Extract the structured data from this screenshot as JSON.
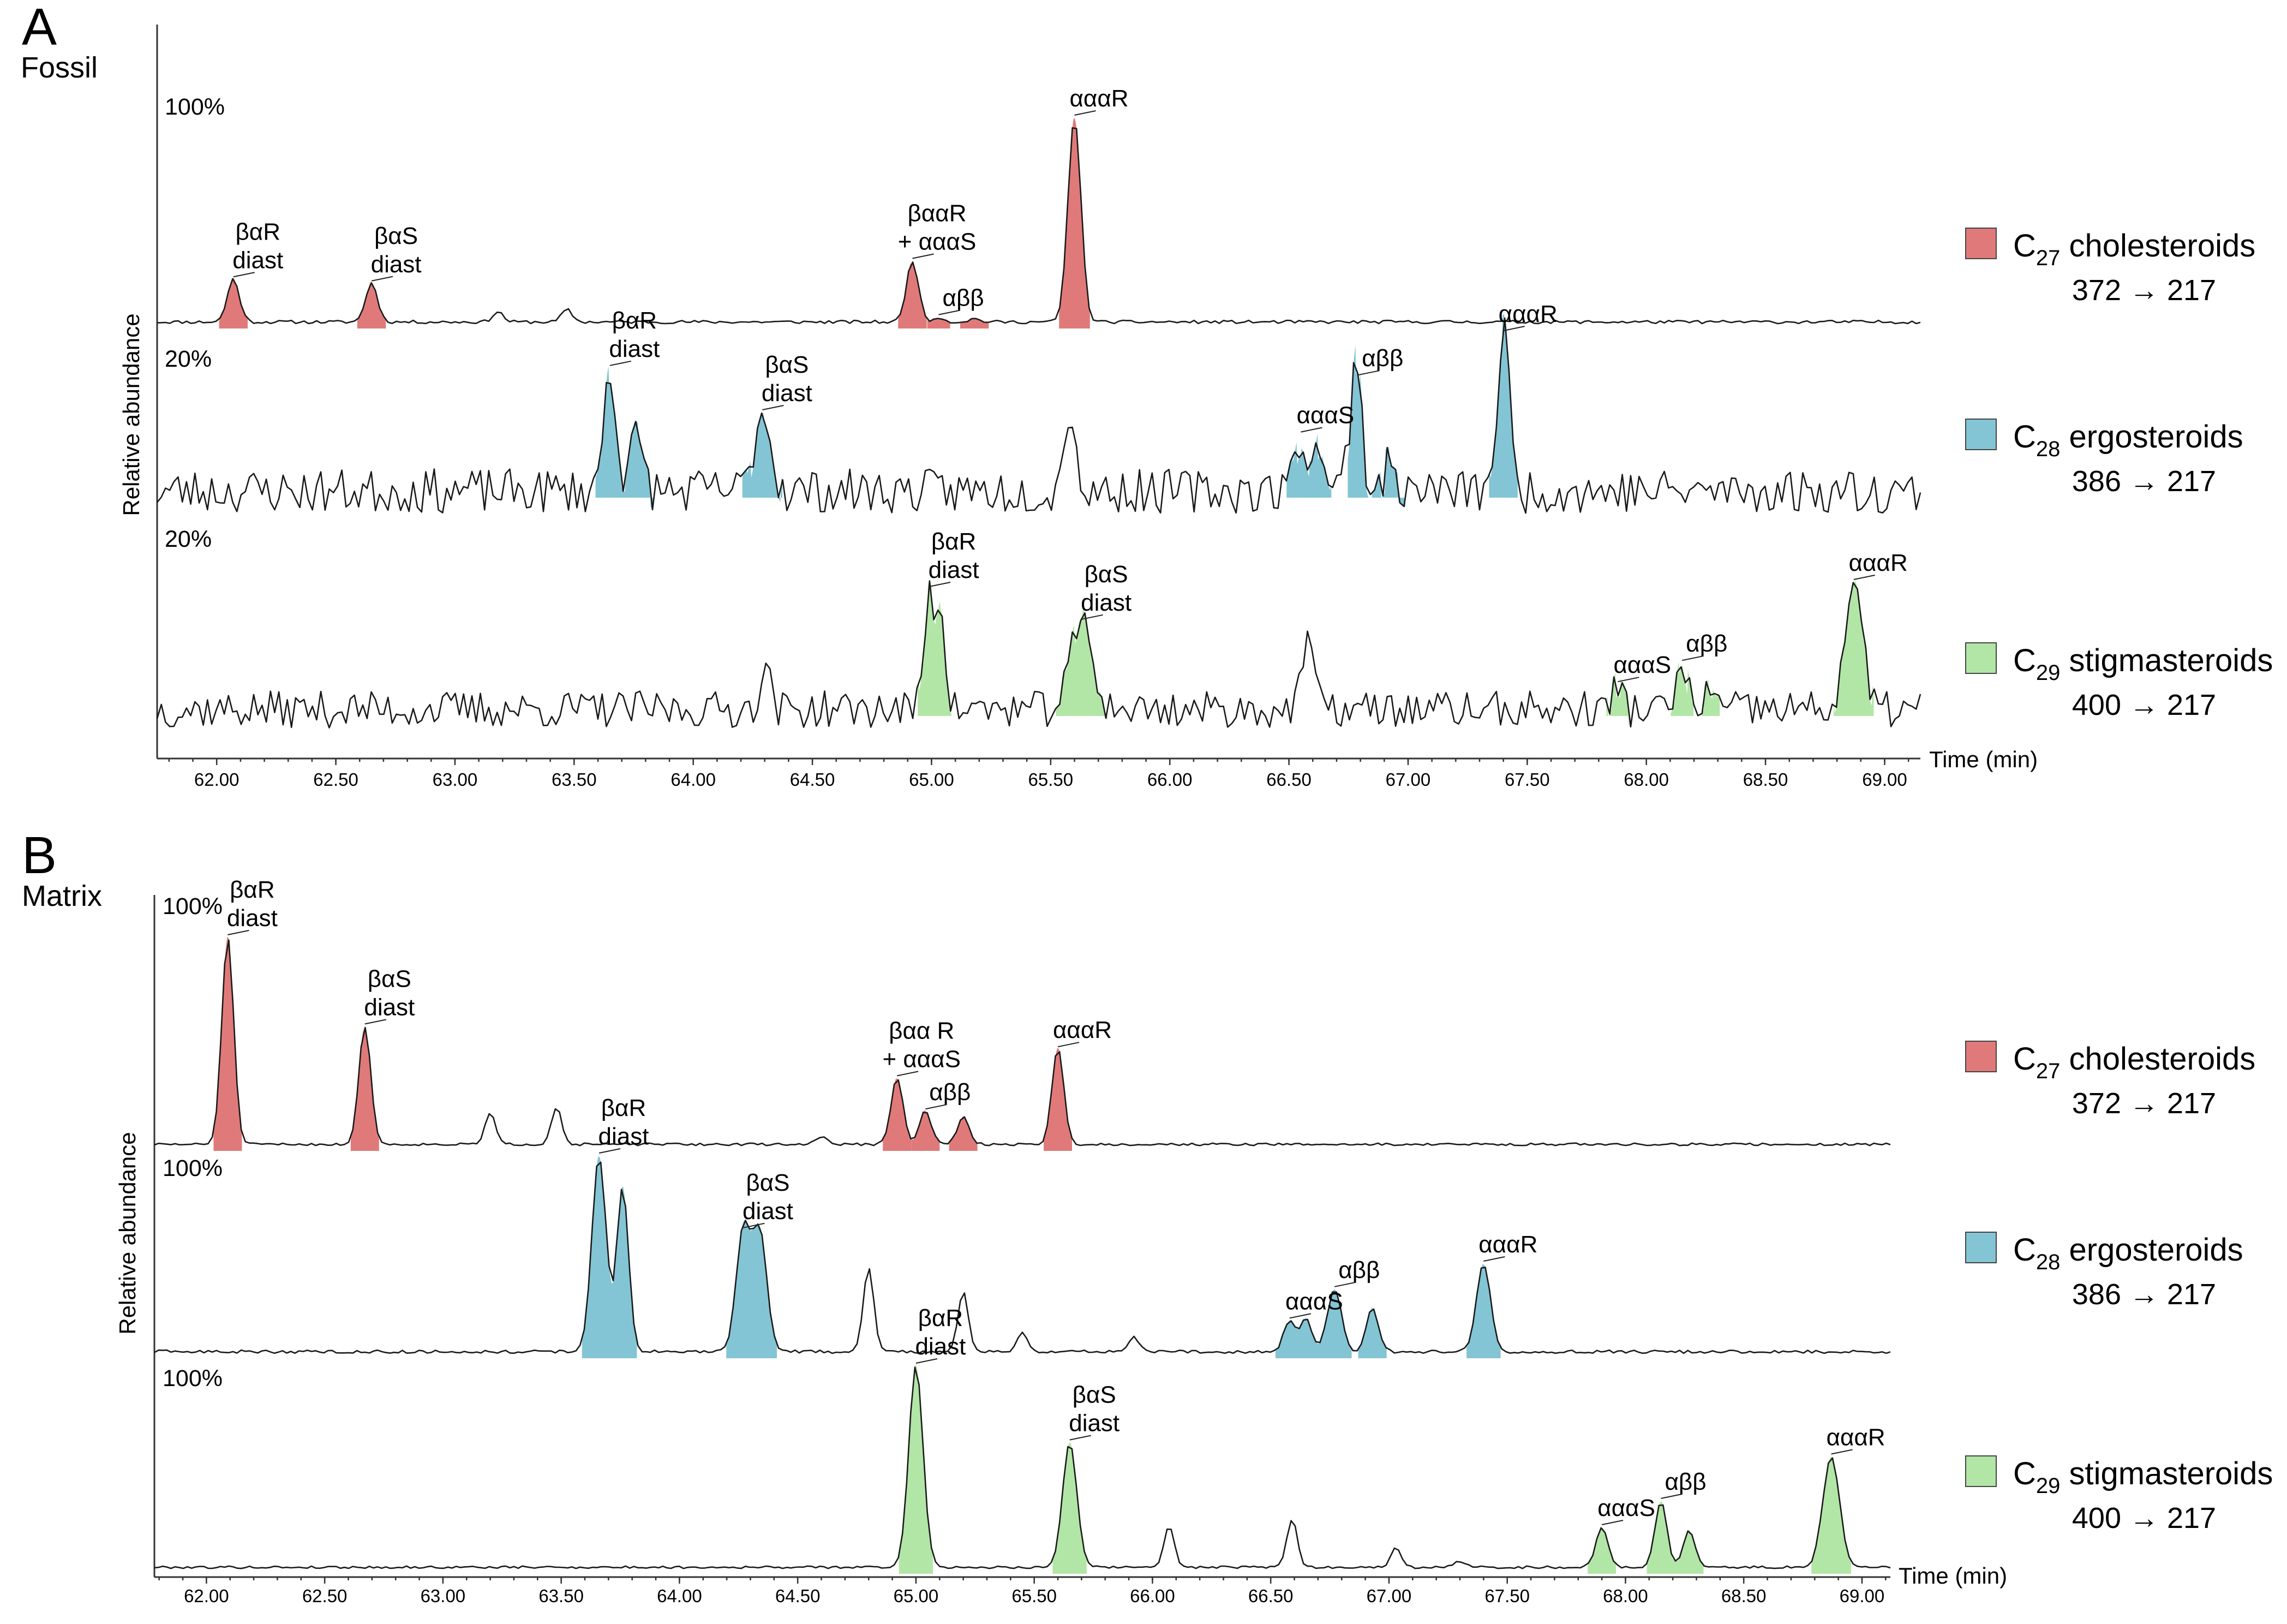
{
  "colors": {
    "C27": "#e07a7a",
    "C28": "#83c5d4",
    "C29": "#b2e6a6"
  },
  "chart_data": [
    {
      "type": "line",
      "panel": "A",
      "sample": "Fossil",
      "ylabel": "Relative abundance",
      "xlabel": "Time (min)",
      "xlim": [
        61.75,
        69.15
      ],
      "ticks": [
        "62.00",
        "62.50",
        "63.00",
        "63.50",
        "64.00",
        "64.50",
        "65.00",
        "65.50",
        "66.00",
        "66.50",
        "67.00",
        "67.50",
        "68.00",
        "68.50",
        "69.00"
      ],
      "series": [
        {
          "name": "C27 cholesteroids",
          "group": "C27",
          "scale": "100%",
          "noise": 0.008,
          "seed": 11,
          "baseline_peaks": [
            [
              63.18,
              0.05
            ],
            [
              63.47,
              0.06
            ]
          ],
          "peaks": [
            {
              "t": 62.07,
              "h": 0.21,
              "w": 0.025,
              "label": [
                "βαR",
                "diast"
              ]
            },
            {
              "t": 62.65,
              "h": 0.19,
              "w": 0.025,
              "label": [
                "βαS",
                "diast"
              ]
            },
            {
              "t": 64.92,
              "h": 0.3,
              "w": 0.025,
              "label": [
                "βααR",
                "+ αααS"
              ]
            },
            {
              "t": 65.03,
              "h": 0.025,
              "w": 0.02,
              "label": [
                "αββ"
              ]
            },
            {
              "t": 65.18,
              "h": 0.015,
              "w": 0.025
            },
            {
              "t": 65.6,
              "h": 1.0,
              "w": 0.027,
              "label": [
                "αααR"
              ]
            }
          ]
        },
        {
          "name": "C28 ergosteroids",
          "group": "C28",
          "scale": "20%",
          "noise": 0.14,
          "seed": 23,
          "baseline_peaks": [
            [
              65.58,
              0.55
            ],
            [
              66.76,
              0.35
            ]
          ],
          "peaks": [
            {
              "t": 63.65,
              "h": 0.78,
              "w": 0.025,
              "label": [
                "βαR",
                "diast"
              ]
            },
            {
              "t": 63.76,
              "h": 0.32,
              "w": 0.03
            },
            {
              "t": 64.29,
              "h": 0.5,
              "w": 0.035,
              "label": [
                "βαS",
                "diast"
              ]
            },
            {
              "t": 66.55,
              "h": 0.36,
              "w": 0.025,
              "label": [
                "αααS"
              ]
            },
            {
              "t": 66.63,
              "h": 0.32,
              "w": 0.02
            },
            {
              "t": 66.79,
              "h": 0.72,
              "w": 0.018,
              "label": [
                "αββ"
              ]
            },
            {
              "t": 66.92,
              "h": 0.14,
              "w": 0.03
            },
            {
              "t": 67.4,
              "h": 1.0,
              "w": 0.025,
              "label": [
                "αααR"
              ]
            }
          ]
        },
        {
          "name": "C29 stigmasteroids",
          "group": "C29",
          "scale": "20%",
          "noise": 0.13,
          "seed": 37,
          "baseline_peaks": [
            [
              64.3,
              0.3
            ],
            [
              66.58,
              0.55
            ]
          ],
          "peaks": [
            {
              "t": 64.99,
              "h": 0.85,
              "w": 0.02,
              "label": [
                "βαR",
                "diast"
              ]
            },
            {
              "t": 65.04,
              "h": 0.75,
              "w": 0.018
            },
            {
              "t": 65.63,
              "h": 0.62,
              "w": 0.045,
              "label": [
                "βαS",
                "diast"
              ]
            },
            {
              "t": 67.88,
              "h": 0.18,
              "w": 0.02,
              "label": [
                "αααS"
              ]
            },
            {
              "t": 68.15,
              "h": 0.33,
              "w": 0.02,
              "label": [
                "αββ"
              ]
            },
            {
              "t": 68.26,
              "h": 0.14,
              "w": 0.02
            },
            {
              "t": 68.87,
              "h": 0.9,
              "w": 0.035,
              "label": [
                "αααR"
              ]
            }
          ]
        }
      ]
    },
    {
      "type": "line",
      "panel": "B",
      "sample": "Matrix",
      "ylabel": "Relative abundance",
      "xlabel": "Time (min)",
      "xlim": [
        61.78,
        69.12
      ],
      "ticks": [
        "62.00",
        "62.50",
        "63.00",
        "63.50",
        "64.00",
        "64.50",
        "65.00",
        "65.50",
        "66.00",
        "66.50",
        "67.00",
        "67.50",
        "68.00",
        "68.50",
        "69.00"
      ],
      "series": [
        {
          "name": "C27 cholesteroids",
          "group": "C27",
          "scale": "100%",
          "noise": 0.006,
          "seed": 51,
          "baseline_peaks": [
            [
              63.2,
              0.15
            ],
            [
              63.48,
              0.18
            ],
            [
              64.6,
              0.04
            ]
          ],
          "peaks": [
            {
              "t": 62.09,
              "h": 1.0,
              "w": 0.025,
              "label": [
                "βαR",
                "diast"
              ]
            },
            {
              "t": 62.67,
              "h": 0.57,
              "w": 0.025,
              "label": [
                "βαS",
                "diast"
              ]
            },
            {
              "t": 64.92,
              "h": 0.32,
              "w": 0.025,
              "label": [
                "βαα R",
                "+ αααS"
              ]
            },
            {
              "t": 65.04,
              "h": 0.16,
              "w": 0.025,
              "label": [
                "αββ"
              ]
            },
            {
              "t": 65.2,
              "h": 0.13,
              "w": 0.025
            },
            {
              "t": 65.6,
              "h": 0.46,
              "w": 0.025,
              "label": [
                "αααR"
              ]
            }
          ]
        },
        {
          "name": "C28 ergosteroids",
          "group": "C28",
          "scale": "100%",
          "noise": 0.008,
          "seed": 63,
          "baseline_peaks": [
            [
              64.8,
              0.43
            ],
            [
              65.2,
              0.3
            ],
            [
              65.45,
              0.1
            ],
            [
              65.92,
              0.08
            ]
          ],
          "peaks": [
            {
              "t": 63.66,
              "h": 1.0,
              "w": 0.03,
              "label": [
                "βαR",
                "diast"
              ]
            },
            {
              "t": 63.76,
              "h": 0.84,
              "w": 0.025
            },
            {
              "t": 64.27,
              "h": 0.62,
              "w": 0.03,
              "label": [
                "βαS",
                "diast"
              ]
            },
            {
              "t": 64.34,
              "h": 0.6,
              "w": 0.03
            },
            {
              "t": 66.58,
              "h": 0.16,
              "w": 0.025,
              "label": [
                "αααS"
              ]
            },
            {
              "t": 66.65,
              "h": 0.16,
              "w": 0.025
            },
            {
              "t": 66.77,
              "h": 0.32,
              "w": 0.03,
              "label": [
                "αββ"
              ]
            },
            {
              "t": 66.93,
              "h": 0.22,
              "w": 0.025
            },
            {
              "t": 67.4,
              "h": 0.45,
              "w": 0.03,
              "label": [
                "αααR"
              ]
            }
          ]
        },
        {
          "name": "C29 stigmasteroids",
          "group": "C29",
          "scale": "100%",
          "noise": 0.006,
          "seed": 79,
          "baseline_peaks": [
            [
              66.07,
              0.2
            ],
            [
              66.59,
              0.24
            ],
            [
              67.03,
              0.1
            ],
            [
              67.3,
              0.03
            ]
          ],
          "peaks": [
            {
              "t": 65.0,
              "h": 1.0,
              "w": 0.03,
              "label": [
                "βαR",
                "diast"
              ]
            },
            {
              "t": 65.65,
              "h": 0.62,
              "w": 0.03,
              "label": [
                "βαS",
                "diast"
              ]
            },
            {
              "t": 67.9,
              "h": 0.2,
              "w": 0.025,
              "label": [
                "αααS"
              ]
            },
            {
              "t": 68.15,
              "h": 0.33,
              "w": 0.025,
              "label": [
                "αββ"
              ]
            },
            {
              "t": 68.27,
              "h": 0.18,
              "w": 0.025
            },
            {
              "t": 68.87,
              "h": 0.55,
              "w": 0.035,
              "label": [
                "αααR"
              ]
            }
          ]
        }
      ]
    }
  ],
  "legend": [
    {
      "group": "C27",
      "prefix": "C",
      "sub": "27",
      "name": "cholesteroids",
      "transition": "372 → 217"
    },
    {
      "group": "C28",
      "prefix": "C",
      "sub": "28",
      "name": "ergosteroids",
      "transition": "386 → 217"
    },
    {
      "group": "C29",
      "prefix": "C",
      "sub": "29",
      "name": "stigmasteroids",
      "transition": "400 → 217"
    }
  ]
}
